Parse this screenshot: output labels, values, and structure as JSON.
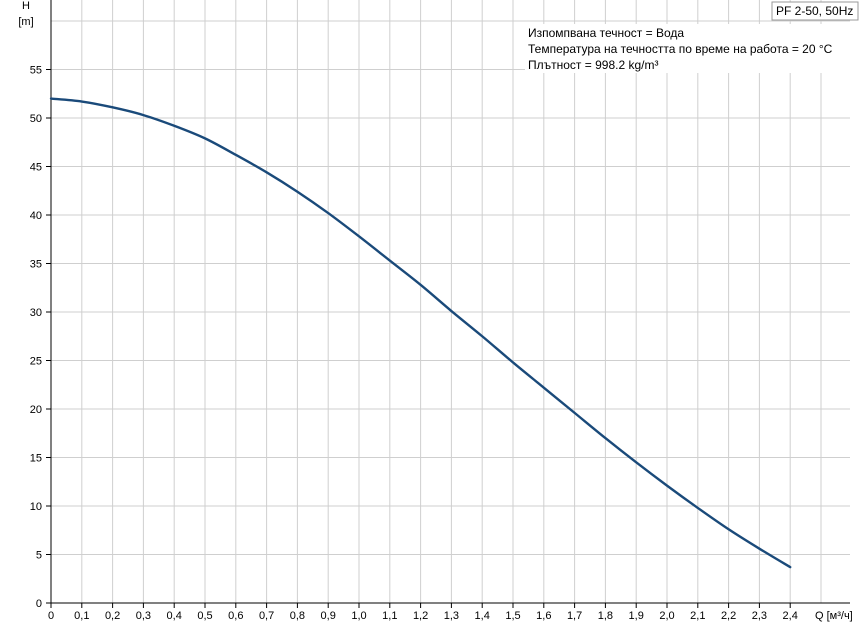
{
  "chart_data": {
    "type": "line",
    "badge": "PF 2-50, 50Hz",
    "info_lines": [
      "Изпомпвана течност = Вода",
      "Температура на течността по време на работа = 20 °C",
      "Плътност = 998.2 kg/m³"
    ],
    "y_axis": {
      "label_symbol": "H",
      "label_unit": "[m]",
      "ylim": [
        0,
        60
      ],
      "ticks": [
        0,
        5,
        10,
        15,
        20,
        25,
        30,
        35,
        40,
        45,
        50,
        55
      ]
    },
    "x_axis": {
      "label": "Q [м³/ч]",
      "xlim": [
        0,
        2.5
      ],
      "ticks": [
        0,
        0.1,
        0.2,
        0.3,
        0.4,
        0.5,
        0.6,
        0.7,
        0.8,
        0.9,
        1.0,
        1.1,
        1.2,
        1.3,
        1.4,
        1.5,
        1.6,
        1.7,
        1.8,
        1.9,
        2.0,
        2.1,
        2.2,
        2.3,
        2.4
      ],
      "tick_labels": [
        "0",
        "0,1",
        "0,2",
        "0,3",
        "0,4",
        "0,5",
        "0,6",
        "0,7",
        "0,8",
        "0,9",
        "1,0",
        "1,1",
        "1,2",
        "1,3",
        "1,4",
        "1,5",
        "1,6",
        "1,7",
        "1,8",
        "1,9",
        "2,0",
        "2,1",
        "2,2",
        "2,3",
        "2,4"
      ]
    },
    "grid": true,
    "series": [
      {
        "color": "#1a4a7a",
        "x": [
          0,
          0.1,
          0.2,
          0.3,
          0.4,
          0.5,
          0.6,
          0.7,
          0.8,
          0.9,
          1.0,
          1.1,
          1.2,
          1.3,
          1.4,
          1.5,
          1.6,
          1.7,
          1.8,
          1.9,
          2.0,
          2.1,
          2.2,
          2.3,
          2.4
        ],
        "y": [
          52.0,
          51.7,
          51.1,
          50.3,
          49.2,
          47.9,
          46.2,
          44.4,
          42.4,
          40.2,
          37.8,
          35.3,
          32.8,
          30.1,
          27.5,
          24.8,
          22.2,
          19.6,
          17.0,
          14.5,
          12.1,
          9.8,
          7.6,
          5.6,
          3.7
        ]
      }
    ]
  }
}
